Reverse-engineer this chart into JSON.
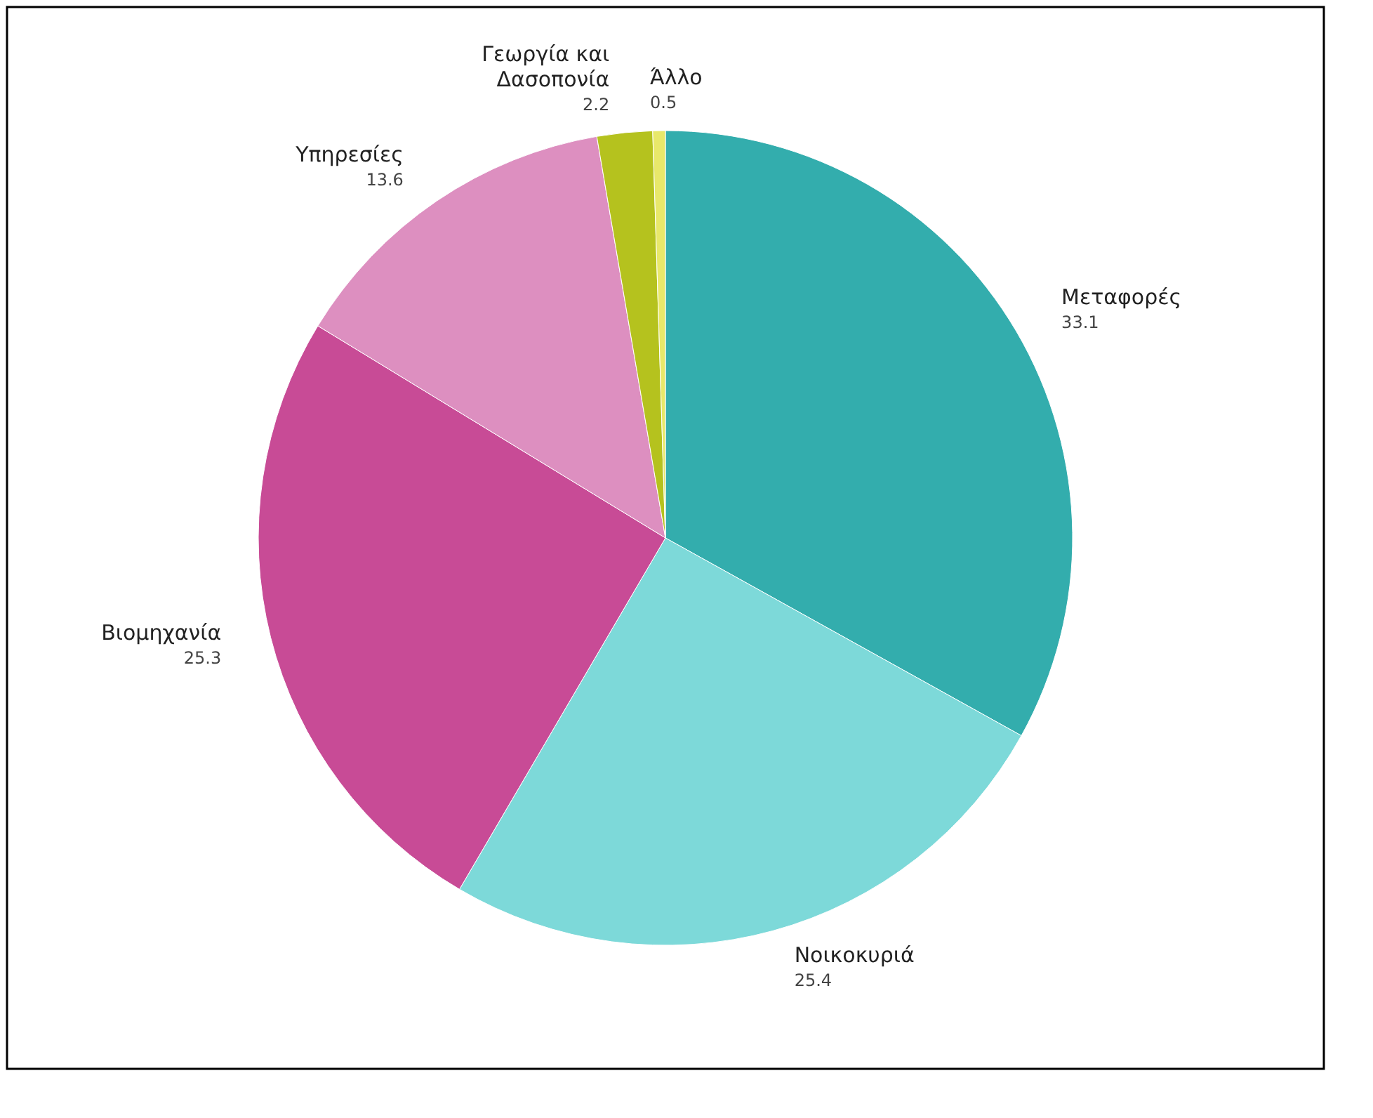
{
  "chart_data": {
    "type": "pie",
    "categories": [
      "Μεταφορές",
      "Νοικοκυριά",
      "Βιομηχανία",
      "Υπηρεσίες",
      "Γεωργία και Δασοπονία",
      "Άλλο"
    ],
    "values": [
      33.1,
      25.4,
      25.3,
      13.6,
      2.2,
      0.5
    ],
    "colors": [
      "#33adad",
      "#7dd9d9",
      "#c84b96",
      "#dd8fc0",
      "#b5c21e",
      "#e8e86a"
    ],
    "data_labels": true,
    "legend": false
  }
}
